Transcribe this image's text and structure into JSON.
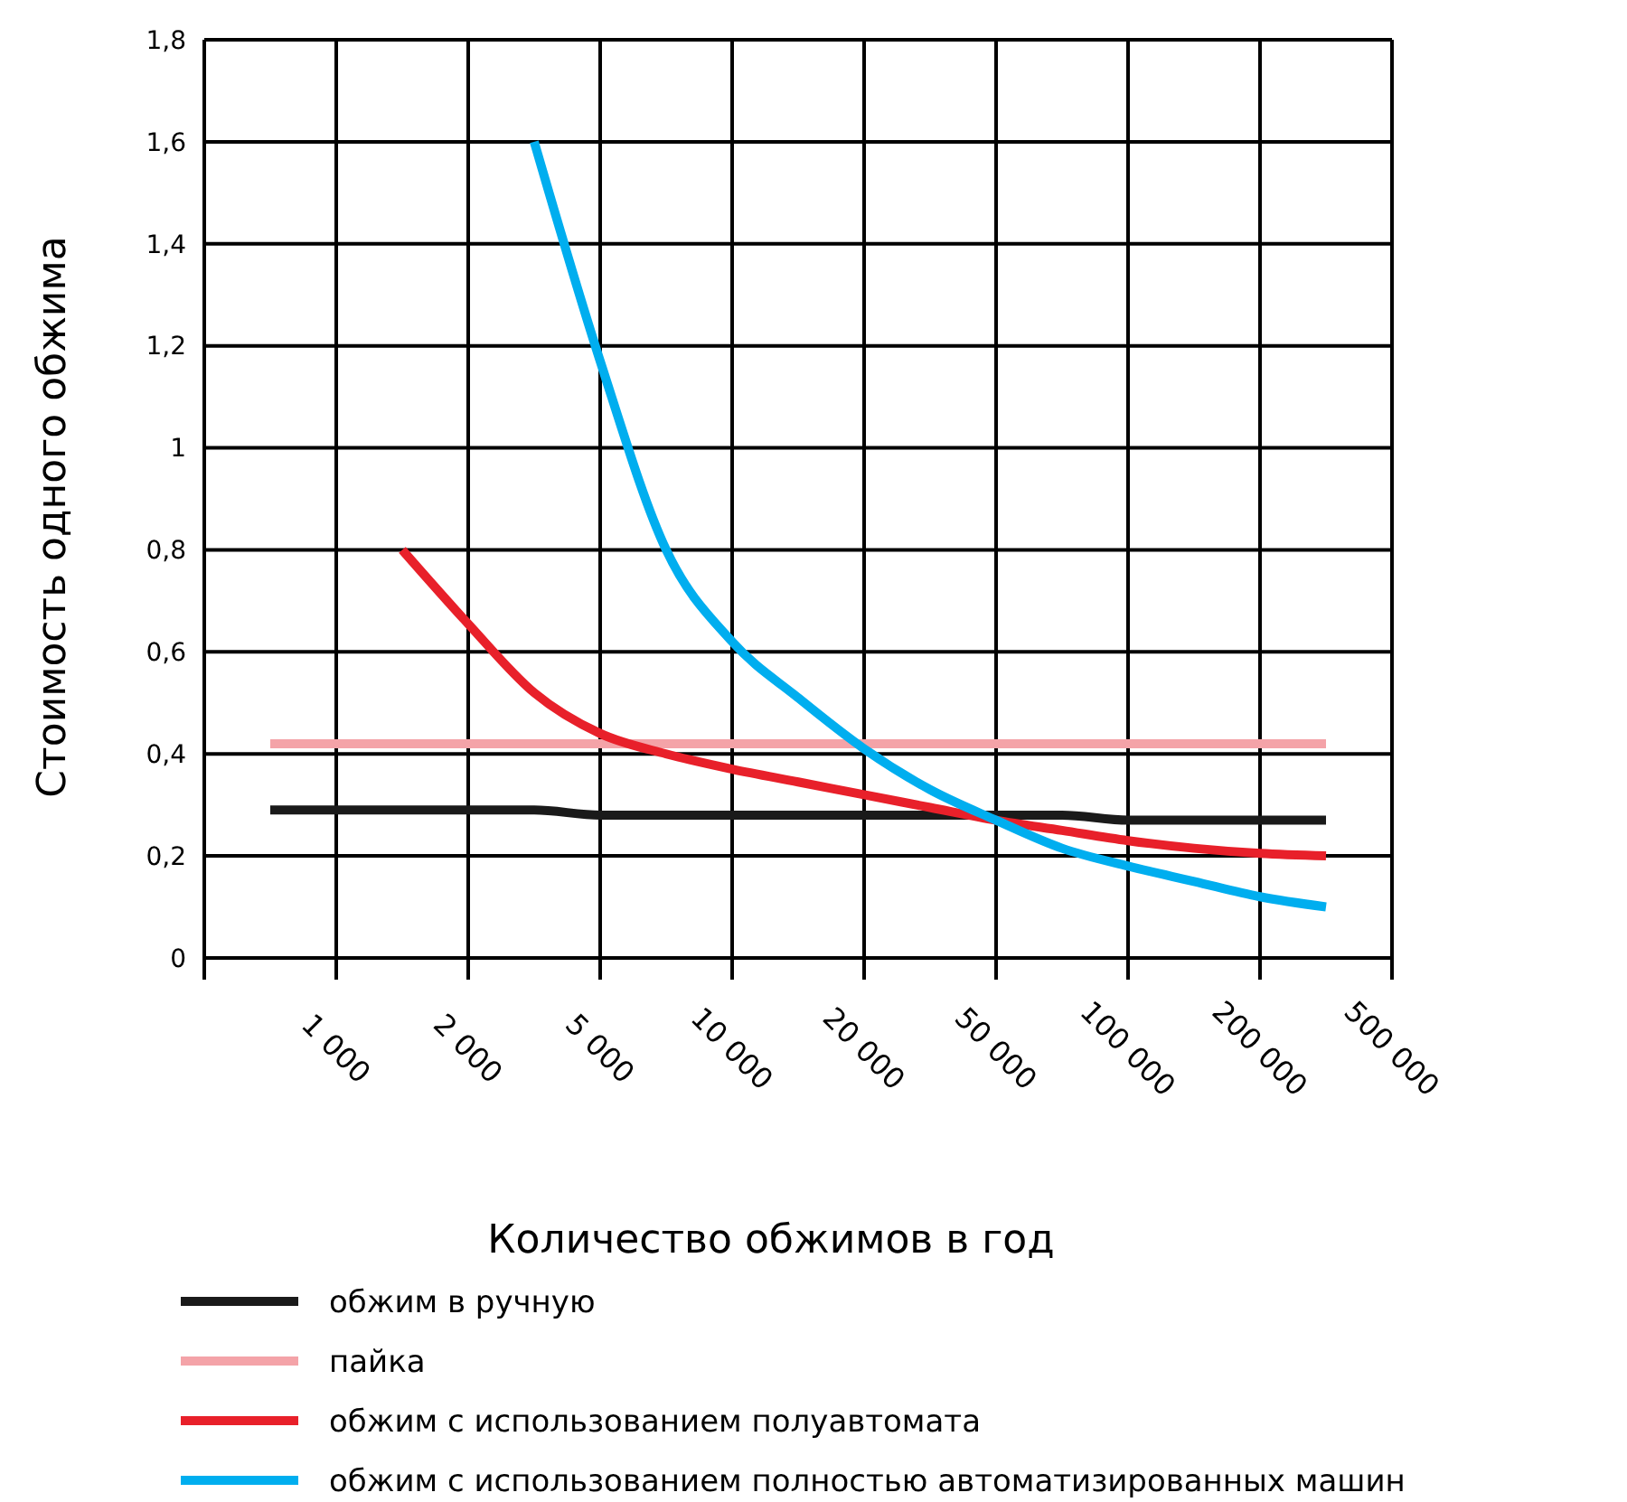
{
  "chart_data": {
    "type": "line",
    "xlabel": "Количество обжимов в год",
    "ylabel": "Стоимость одного обжима",
    "categories": [
      null,
      null,
      "1 000",
      null,
      "2 000",
      null,
      "5 000",
      null,
      "10 000",
      null,
      "20 000",
      null,
      "50 000",
      null,
      "100 000",
      null,
      "200 000",
      null,
      "500 000"
    ],
    "ylim": [
      0,
      1.8
    ],
    "yticks": [
      0,
      {
        "value": 0.2,
        "label": "0,2"
      },
      {
        "value": 0.4,
        "label": "0,4"
      },
      {
        "value": 0.6,
        "label": "0,6"
      },
      {
        "value": 0.8,
        "label": "0,8"
      },
      1,
      {
        "value": 1.2,
        "label": "1,2"
      },
      {
        "value": 1.4,
        "label": "1,4"
      },
      {
        "value": 1.6,
        "label": "1,6"
      },
      {
        "value": 1.8,
        "label": "1,8"
      }
    ],
    "grid": true,
    "legend": "bottom",
    "marker": "none",
    "line_style": "solid",
    "series": [
      {
        "name": "обжим в ручную",
        "color": "#1a1a1a",
        "values": [
          null,
          0.29,
          0.29,
          0.29,
          0.29,
          0.29,
          0.28,
          0.28,
          0.28,
          0.28,
          0.28,
          0.28,
          0.28,
          0.28,
          0.27,
          0.27,
          0.27,
          0.27,
          null
        ]
      },
      {
        "name": "пайка",
        "color": "#f4a3a8",
        "values": [
          null,
          0.42,
          0.42,
          0.42,
          0.42,
          0.42,
          0.42,
          0.42,
          0.42,
          0.42,
          0.42,
          0.42,
          0.42,
          0.42,
          0.42,
          0.42,
          0.42,
          0.42,
          null
        ]
      },
      {
        "name": "обжим с использованием полуавтомата",
        "color": "#e8202a",
        "values": [
          null,
          null,
          null,
          0.8,
          0.655,
          0.52,
          0.44,
          0.4,
          0.37,
          0.345,
          0.32,
          0.295,
          0.27,
          0.25,
          0.23,
          0.215,
          0.205,
          0.2,
          null
        ]
      },
      {
        "name": "обжим с использованием полностью автоматизированных машин",
        "color": "#00aeef",
        "values": [
          null,
          null,
          null,
          null,
          null,
          1.6,
          1.17,
          0.8,
          0.62,
          0.51,
          0.41,
          0.33,
          0.27,
          0.215,
          0.18,
          0.15,
          0.12,
          0.1,
          null
        ]
      }
    ]
  }
}
